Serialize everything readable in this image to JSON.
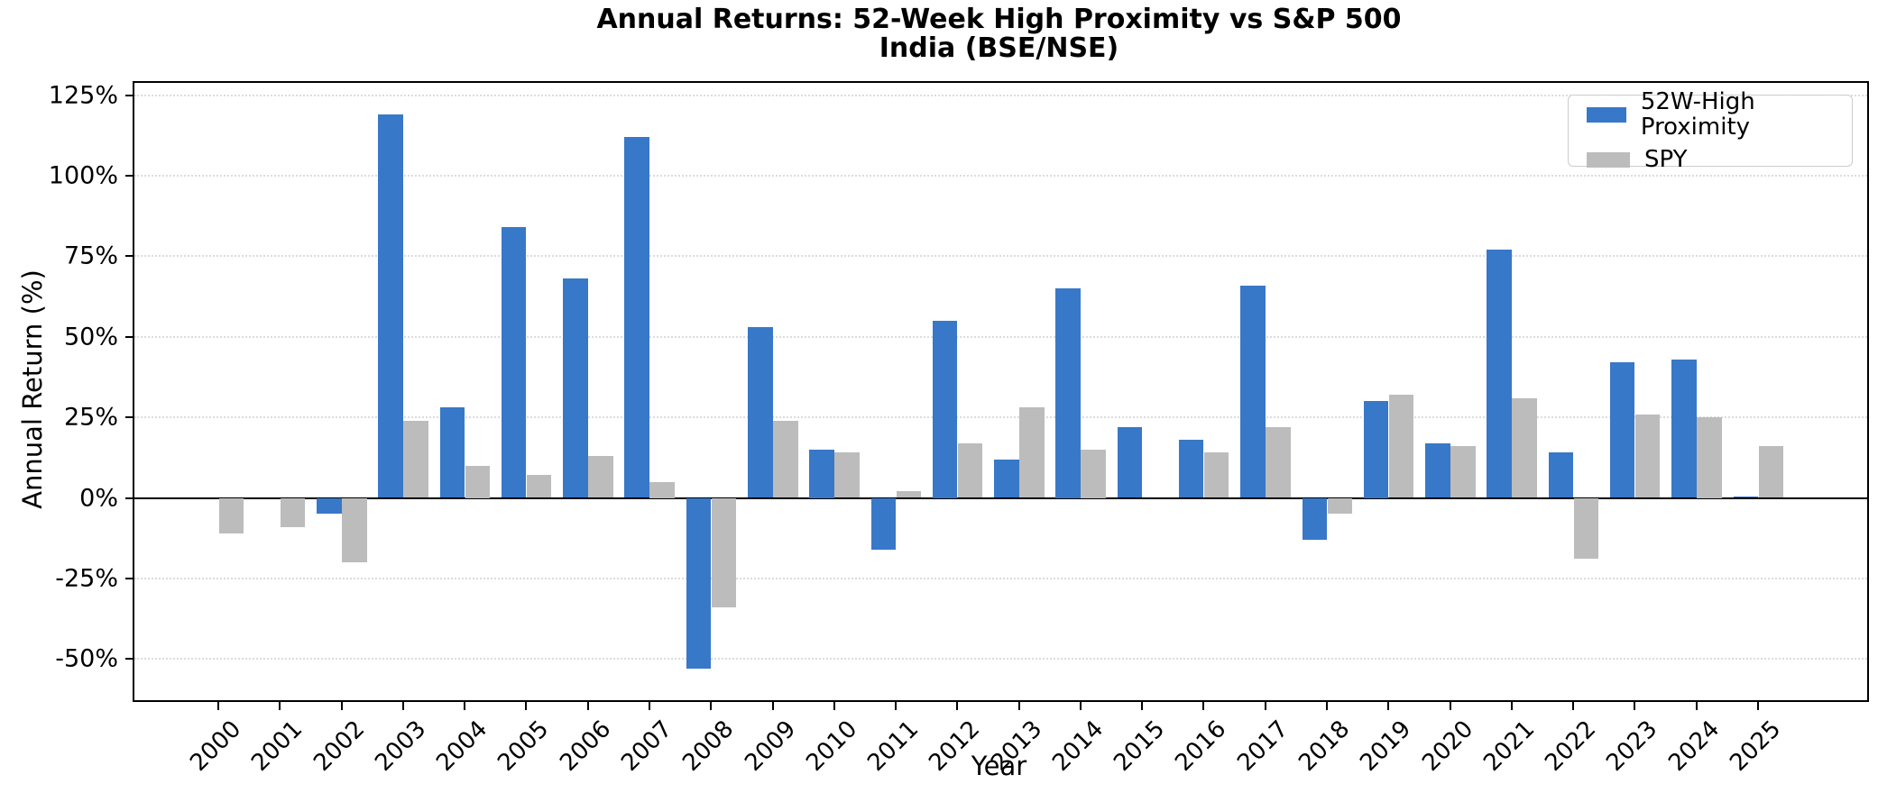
{
  "title": {
    "line1": "Annual Returns: 52-Week High Proximity vs S&P 500",
    "line2": "India (BSE/NSE)"
  },
  "axes": {
    "y_label": "Annual Return (%)",
    "x_label": "Year",
    "y_tick_labels": [
      "125%",
      "100%",
      "75%",
      "50%",
      "25%",
      "0%",
      "-25%",
      "-50%"
    ]
  },
  "legend": [
    {
      "label": "52W-High Proximity",
      "color": "#3878c8"
    },
    {
      "label": "SPY",
      "color": "#bcbcbc"
    }
  ],
  "chart_data": {
    "type": "bar",
    "title": "Annual Returns: 52-Week High Proximity vs S&P 500\nIndia (BSE/NSE)",
    "xlabel": "Year",
    "ylabel": "Annual Return (%)",
    "categories": [
      "2000",
      "2001",
      "2002",
      "2003",
      "2004",
      "2005",
      "2006",
      "2007",
      "2008",
      "2009",
      "2010",
      "2011",
      "2012",
      "2013",
      "2014",
      "2015",
      "2016",
      "2017",
      "2018",
      "2019",
      "2020",
      "2021",
      "2022",
      "2023",
      "2024",
      "2025"
    ],
    "series": [
      {
        "name": "52W-High Proximity",
        "color": "#3878c8",
        "values": [
          0,
          0,
          -5,
          119,
          28,
          84,
          68,
          112,
          -53,
          53,
          15,
          -16,
          55,
          12,
          65,
          22,
          18,
          66,
          -13,
          30,
          17,
          77,
          14,
          42,
          43,
          0.5
        ]
      },
      {
        "name": "SPY",
        "color": "#bcbcbc",
        "values": [
          -11,
          -9,
          -20,
          24,
          10,
          7,
          13,
          5,
          -34,
          24,
          14,
          2,
          17,
          28,
          15,
          0,
          14,
          22,
          -5,
          32,
          16,
          31,
          -19,
          26,
          25,
          16
        ]
      }
    ],
    "ytick_values": [
      125,
      100,
      75,
      50,
      25,
      0,
      -25,
      -50
    ],
    "ylim": [
      -62.8,
      128.8
    ],
    "grid": "horizontal-dotted",
    "legend_position": "upper right"
  }
}
